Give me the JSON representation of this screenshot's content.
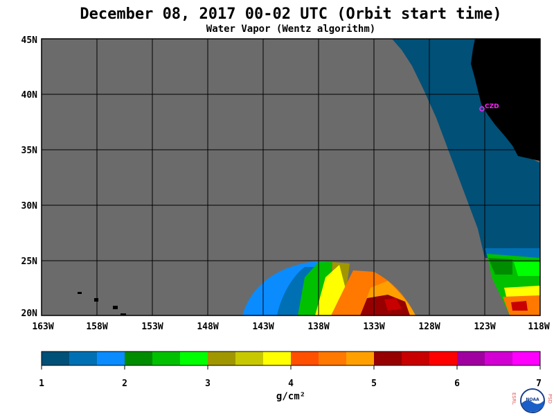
{
  "title": "December 08, 2017  00-02 UTC  (Orbit start time)",
  "subtitle": "Water Vapor (Wentz algorithm)",
  "map": {
    "lat_labels": [
      "45N",
      "40N",
      "35N",
      "30N",
      "25N",
      "20N"
    ],
    "lon_labels": [
      "163W",
      "158W",
      "153W",
      "148W",
      "143W",
      "138W",
      "133W",
      "128W",
      "123W",
      "118W"
    ],
    "station_label": "CZD",
    "station_color": "#ff22ff",
    "no_data_color": "#6b6b6b",
    "land_color": "#000000"
  },
  "colorbar": {
    "colors": [
      "#005078",
      "#0070b4",
      "#0a8cff",
      "#008c00",
      "#00c000",
      "#00ff00",
      "#a09600",
      "#c8c800",
      "#ffff00",
      "#ff5000",
      "#ff7800",
      "#ffa000",
      "#960000",
      "#c80000",
      "#ff0000",
      "#a000a0",
      "#d200d2",
      "#ff00ff"
    ],
    "tick_labels": [
      "1",
      "2",
      "3",
      "4",
      "5",
      "6",
      "7"
    ],
    "unit": "g/cm²"
  },
  "logo": {
    "left_letters": "ESRL",
    "right_letters": "PSD",
    "center_text": "NOAA"
  }
}
